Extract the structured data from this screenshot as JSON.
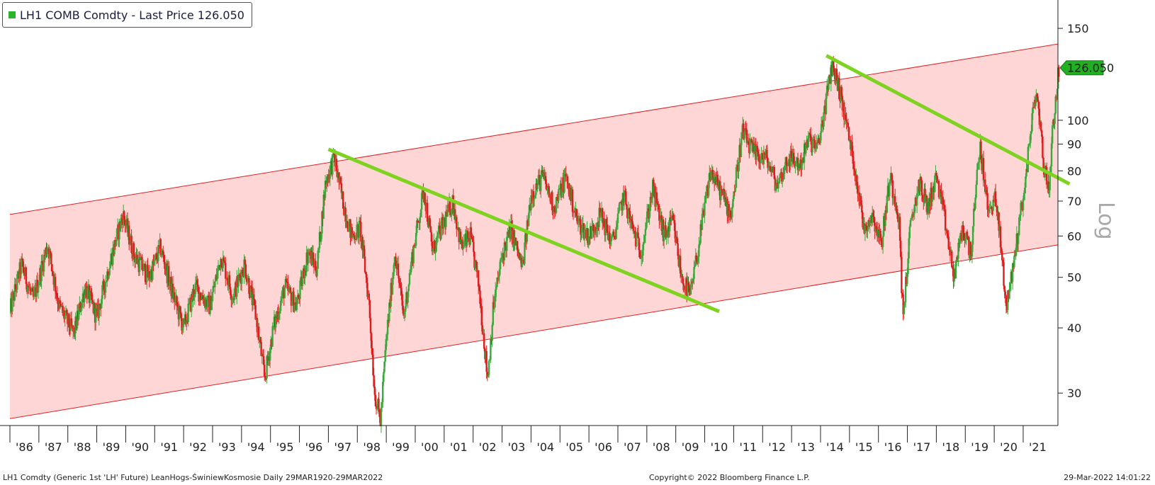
{
  "legend": {
    "label": "LH1 COMB Comdty - Last Price 126.050",
    "swatch_color": "#2bb52b"
  },
  "footer": {
    "left": "LH1 Comdty (Generic 1st 'LH' Future) LeanHogs-ŚwiniewKosmosie  Daily 29MAR1920-29MAR2022",
    "center": "Copyright© 2022 Bloomberg Finance L.P.",
    "right": "29-Mar-2022 14:01:22"
  },
  "axis": {
    "scale_label": "Log"
  },
  "last_price_tag": "126.050",
  "chart_data": {
    "type": "candlestick",
    "title": "LH1 COMB Comdty - Last Price 126.050",
    "y_scale": "log",
    "ylim": [
      26,
      170
    ],
    "xlim": [
      1986.0,
      2022.2
    ],
    "y_ticks": [
      30,
      40,
      50,
      60,
      70,
      80,
      90,
      100,
      150
    ],
    "x_tick_labels": [
      "'86",
      "'87",
      "'88",
      "'89",
      "'90",
      "'91",
      "'92",
      "'93",
      "'94",
      "'95",
      "'96",
      "'97",
      "'98",
      "'99",
      "'00",
      "'01",
      "'02",
      "'03",
      "'04",
      "'05",
      "'06",
      "'07",
      "'08",
      "'09",
      "'10",
      "'11",
      "'12",
      "'13",
      "'14",
      "'15",
      "'16",
      "'17",
      "'18",
      "'19",
      "'20",
      "'21"
    ],
    "last_price": 126.05,
    "colors": {
      "up": "#3aa83a",
      "down": "#e01b1b",
      "channel_fill": "#ffd6d6",
      "channel_line": "#e02020",
      "trendline": "#7ed321",
      "last_tag": "#22b022"
    },
    "price_path": [
      [
        1986.0,
        43
      ],
      [
        1986.4,
        53
      ],
      [
        1986.8,
        45
      ],
      [
        1987.3,
        58
      ],
      [
        1987.7,
        44
      ],
      [
        1988.2,
        39
      ],
      [
        1988.6,
        48
      ],
      [
        1989.0,
        42
      ],
      [
        1989.4,
        52
      ],
      [
        1989.9,
        66
      ],
      [
        1990.3,
        55
      ],
      [
        1990.8,
        50
      ],
      [
        1991.2,
        57
      ],
      [
        1991.6,
        47
      ],
      [
        1992.0,
        40
      ],
      [
        1992.4,
        48
      ],
      [
        1992.9,
        44
      ],
      [
        1993.3,
        55
      ],
      [
        1993.7,
        46
      ],
      [
        1994.1,
        53
      ],
      [
        1994.5,
        42
      ],
      [
        1994.8,
        32
      ],
      [
        1995.1,
        40
      ],
      [
        1995.5,
        48
      ],
      [
        1995.9,
        44
      ],
      [
        1996.3,
        56
      ],
      [
        1996.6,
        52
      ],
      [
        1996.9,
        76
      ],
      [
        1997.2,
        85
      ],
      [
        1997.5,
        70
      ],
      [
        1997.8,
        60
      ],
      [
        1998.1,
        62
      ],
      [
        1998.4,
        45
      ],
      [
        1998.6,
        30
      ],
      [
        1998.8,
        26.5
      ],
      [
        1999.0,
        38
      ],
      [
        1999.3,
        56
      ],
      [
        1999.6,
        42
      ],
      [
        1999.9,
        55
      ],
      [
        2000.3,
        74
      ],
      [
        2000.6,
        56
      ],
      [
        2000.9,
        62
      ],
      [
        2001.3,
        70
      ],
      [
        2001.6,
        57
      ],
      [
        2001.9,
        60
      ],
      [
        2002.2,
        48
      ],
      [
        2002.5,
        32
      ],
      [
        2002.7,
        44
      ],
      [
        2003.0,
        55
      ],
      [
        2003.3,
        62
      ],
      [
        2003.7,
        52
      ],
      [
        2004.0,
        72
      ],
      [
        2004.4,
        78
      ],
      [
        2004.8,
        68
      ],
      [
        2005.2,
        78
      ],
      [
        2005.6,
        64
      ],
      [
        2006.0,
        60
      ],
      [
        2006.4,
        66
      ],
      [
        2006.8,
        58
      ],
      [
        2007.2,
        72
      ],
      [
        2007.5,
        62
      ],
      [
        2007.8,
        56
      ],
      [
        2008.2,
        74
      ],
      [
        2008.6,
        60
      ],
      [
        2008.9,
        64
      ],
      [
        2009.2,
        50
      ],
      [
        2009.5,
        46
      ],
      [
        2009.8,
        58
      ],
      [
        2010.2,
        80
      ],
      [
        2010.6,
        72
      ],
      [
        2010.9,
        66
      ],
      [
        2011.3,
        95
      ],
      [
        2011.7,
        86
      ],
      [
        2012.1,
        85
      ],
      [
        2012.5,
        75
      ],
      [
        2012.9,
        85
      ],
      [
        2013.3,
        82
      ],
      [
        2013.6,
        92
      ],
      [
        2013.9,
        88
      ],
      [
        2014.2,
        110
      ],
      [
        2014.4,
        128
      ],
      [
        2014.6,
        118
      ],
      [
        2014.9,
        98
      ],
      [
        2015.2,
        80
      ],
      [
        2015.5,
        62
      ],
      [
        2015.8,
        66
      ],
      [
        2016.1,
        58
      ],
      [
        2016.4,
        78
      ],
      [
        2016.7,
        66
      ],
      [
        2016.85,
        42
      ],
      [
        2017.1,
        62
      ],
      [
        2017.4,
        76
      ],
      [
        2017.7,
        68
      ],
      [
        2018.0,
        78
      ],
      [
        2018.3,
        64
      ],
      [
        2018.6,
        50
      ],
      [
        2018.9,
        62
      ],
      [
        2019.2,
        56
      ],
      [
        2019.5,
        90
      ],
      [
        2019.8,
        66
      ],
      [
        2020.0,
        72
      ],
      [
        2020.2,
        60
      ],
      [
        2020.4,
        44
      ],
      [
        2020.6,
        50
      ],
      [
        2020.9,
        66
      ],
      [
        2021.1,
        78
      ],
      [
        2021.3,
        102
      ],
      [
        2021.5,
        112
      ],
      [
        2021.7,
        82
      ],
      [
        2021.9,
        74
      ],
      [
        2022.0,
        95
      ],
      [
        2022.24,
        126.05
      ]
    ],
    "channel": {
      "upper": [
        [
          1986.0,
          66
        ],
        [
          2022.2,
          140
        ]
      ],
      "lower": [
        [
          1986.0,
          26.8
        ],
        [
          2022.2,
          57.7
        ]
      ]
    },
    "trendlines": [
      [
        [
          1997.0,
          88
        ],
        [
          2010.5,
          43
        ]
      ],
      [
        [
          2014.2,
          133
        ],
        [
          2022.6,
          75.5
        ]
      ]
    ]
  }
}
